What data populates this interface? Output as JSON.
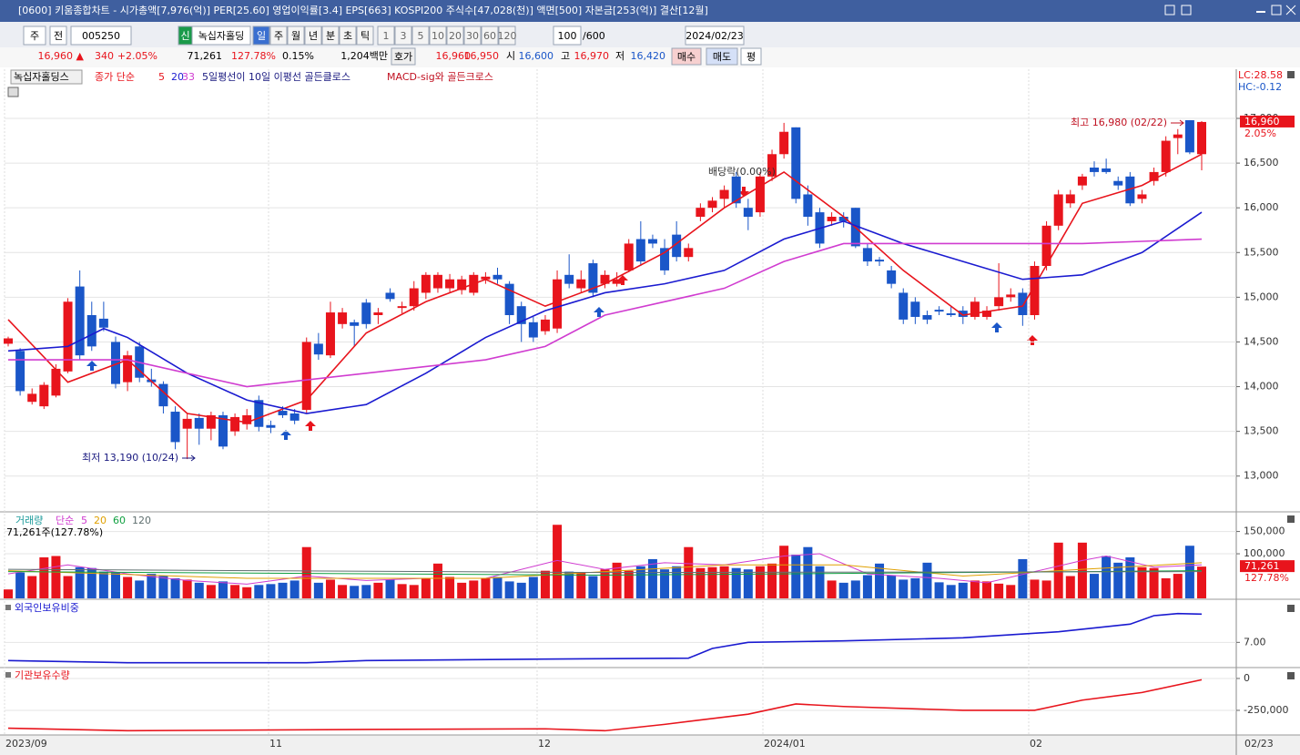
{
  "window": {
    "title": "[0600] 키움종합차트 - 시가총액[7,976(억)] PER[25.60] 영업이익률[3.4] EPS[663] KOSPI200 주식수[47,028(천)] 액면[500] 자본금[253(억)] 결산[12월]"
  },
  "toolbar": {
    "period": "주",
    "range": "전",
    "code": "005250",
    "badge": "신",
    "name": "녹십자홀딩",
    "units": [
      "일",
      "주",
      "월",
      "년",
      "분",
      "초",
      "틱"
    ],
    "intervals": [
      "1",
      "3",
      "5",
      "10",
      "20",
      "30",
      "60",
      "120"
    ],
    "count": "100",
    "max": "/600",
    "date": "2024/02/23"
  },
  "quote": {
    "price": "16,960 ▲",
    "change": "340",
    "rate": "+2.05%",
    "volume": "71,261",
    "volume_rate": "127.78%",
    "turnover": "0.15%",
    "amount": "1,204백만",
    "ask_label": "호가",
    "ask": "16,960",
    "bid": "16,950",
    "open_label": "시",
    "open": "16,600",
    "high_label": "고",
    "high": "16,970",
    "low_label": "저",
    "low": "16,420",
    "buy": "매수",
    "sell": "매도",
    "avg": "평"
  },
  "x_axis": [
    "2023/09",
    "11",
    "12",
    "2024/01",
    "02",
    "02/23"
  ],
  "chart_data": [
    {
      "type": "candlestick",
      "title": "녹십자홀딩스",
      "ma_label": "종가 단순",
      "signals": [
        "5일평선이 10일 이평선 골든클로스",
        "MACD-sig와 골든크로스"
      ],
      "lc": "LC:28.58",
      "hc": "HC:-0.12",
      "annotations": {
        "high": "최고 16,980 (02/22)",
        "low": "최저 13,190 (10/24)",
        "dividend": "배당락(0.00%)"
      },
      "last_price": 16960,
      "last_price_label": "16,960",
      "last_change": "2.05%",
      "up_color": "#e8141c",
      "down_color": "#1a56c8",
      "ylim": [
        12600,
        17550
      ],
      "yticks": [
        {
          "value": 13000,
          "label": "13,000"
        },
        {
          "value": 13500,
          "label": "13,500"
        },
        {
          "value": 14000,
          "label": "14,000"
        },
        {
          "value": 14500,
          "label": "14,500"
        },
        {
          "value": 15000,
          "label": "15,000"
        },
        {
          "value": 15500,
          "label": "15,500"
        },
        {
          "value": 16000,
          "label": "16,000"
        },
        {
          "value": 16500,
          "label": "16,500"
        },
        {
          "value": 17000,
          "label": "17,000"
        }
      ],
      "candles": [
        [
          14480,
          14560,
          14450,
          14540
        ],
        [
          14400,
          14430,
          13900,
          13950
        ],
        [
          13830,
          13980,
          13800,
          13920
        ],
        [
          13780,
          14050,
          13750,
          14020
        ],
        [
          13900,
          14250,
          13880,
          14200
        ],
        [
          14170,
          14990,
          14150,
          14950
        ],
        [
          15120,
          15300,
          14300,
          14350
        ],
        [
          14800,
          14950,
          14400,
          14450
        ],
        [
          14760,
          14950,
          14620,
          14660
        ],
        [
          14500,
          14560,
          13980,
          14030
        ],
        [
          14050,
          14400,
          13950,
          14350
        ],
        [
          14450,
          14500,
          14050,
          14100
        ],
        [
          14080,
          14200,
          14000,
          14050
        ],
        [
          14030,
          14060,
          13700,
          13780
        ],
        [
          13720,
          13780,
          13300,
          13380
        ],
        [
          13530,
          13700,
          13190,
          13640
        ],
        [
          13650,
          13700,
          13350,
          13530
        ],
        [
          13530,
          13720,
          13400,
          13680
        ],
        [
          13680,
          13720,
          13300,
          13330
        ],
        [
          13500,
          13700,
          13450,
          13660
        ],
        [
          13580,
          13750,
          13520,
          13680
        ],
        [
          13850,
          13900,
          13500,
          13550
        ],
        [
          13570,
          13620,
          13480,
          13540
        ],
        [
          13730,
          13780,
          13650,
          13680
        ],
        [
          13700,
          13750,
          13580,
          13620
        ],
        [
          13740,
          14550,
          13700,
          14500
        ],
        [
          14480,
          14600,
          14300,
          14360
        ],
        [
          14350,
          14950,
          14320,
          14830
        ],
        [
          14700,
          14880,
          14650,
          14830
        ],
        [
          14720,
          14750,
          14450,
          14680
        ],
        [
          14940,
          14980,
          14650,
          14700
        ],
        [
          14800,
          14880,
          14700,
          14830
        ],
        [
          15050,
          15100,
          14950,
          14980
        ],
        [
          14880,
          14950,
          14820,
          14900
        ],
        [
          14900,
          15180,
          14850,
          15100
        ],
        [
          15050,
          15280,
          14980,
          15250
        ],
        [
          15100,
          15280,
          15050,
          15250
        ],
        [
          15100,
          15260,
          15050,
          15200
        ],
        [
          15080,
          15240,
          15030,
          15200
        ],
        [
          15050,
          15280,
          15020,
          15250
        ],
        [
          15200,
          15280,
          15150,
          15230
        ],
        [
          15250,
          15330,
          15150,
          15200
        ],
        [
          15150,
          15180,
          14700,
          14800
        ],
        [
          14900,
          14950,
          14500,
          14700
        ],
        [
          14720,
          14780,
          14500,
          14550
        ],
        [
          14620,
          14800,
          14580,
          14750
        ],
        [
          14650,
          15300,
          14600,
          15200
        ],
        [
          15250,
          15480,
          15100,
          15150
        ],
        [
          15100,
          15300,
          15050,
          15200
        ],
        [
          15380,
          15420,
          15000,
          15050
        ],
        [
          15150,
          15300,
          15100,
          15250
        ],
        [
          15150,
          15280,
          15120,
          15200
        ],
        [
          15300,
          15650,
          15280,
          15600
        ],
        [
          15650,
          15850,
          15350,
          15400
        ],
        [
          15650,
          15700,
          15550,
          15600
        ],
        [
          15550,
          15650,
          15250,
          15300
        ],
        [
          15700,
          15850,
          15400,
          15450
        ],
        [
          15450,
          15600,
          15400,
          15550
        ],
        [
          15900,
          16050,
          15850,
          16000
        ],
        [
          16000,
          16120,
          15950,
          16080
        ],
        [
          16100,
          16250,
          16000,
          16200
        ],
        [
          16350,
          16400,
          16000,
          16050
        ],
        [
          16000,
          16100,
          15750,
          15900
        ],
        [
          15950,
          16400,
          15900,
          16350
        ],
        [
          16350,
          16650,
          16300,
          16600
        ],
        [
          16600,
          16950,
          16550,
          16850
        ],
        [
          16900,
          16900,
          16050,
          16100
        ],
        [
          16150,
          16250,
          15800,
          15900
        ],
        [
          15950,
          16000,
          15550,
          15600
        ],
        [
          15850,
          15950,
          15800,
          15900
        ],
        [
          15900,
          15950,
          15780,
          15850
        ],
        [
          16000,
          16000,
          15550,
          15570
        ],
        [
          15550,
          15600,
          15350,
          15400
        ],
        [
          15420,
          15450,
          15350,
          15400
        ],
        [
          15300,
          15350,
          15100,
          15150
        ],
        [
          15050,
          15100,
          14700,
          14750
        ],
        [
          14950,
          15000,
          14700,
          14780
        ],
        [
          14800,
          14850,
          14700,
          14750
        ],
        [
          14860,
          14900,
          14800,
          14840
        ],
        [
          14820,
          14900,
          14780,
          14800
        ],
        [
          14850,
          14900,
          14700,
          14780
        ],
        [
          14780,
          15000,
          14750,
          14950
        ],
        [
          14780,
          14900,
          14750,
          14850
        ],
        [
          14900,
          15380,
          14850,
          15000
        ],
        [
          15000,
          15100,
          14950,
          15030
        ],
        [
          15050,
          15100,
          14680,
          14800
        ],
        [
          14800,
          15400,
          14750,
          15350
        ],
        [
          15350,
          15850,
          15300,
          15800
        ],
        [
          15800,
          16200,
          15750,
          16150
        ],
        [
          16050,
          16200,
          16000,
          16150
        ],
        [
          16250,
          16380,
          16200,
          16350
        ],
        [
          16450,
          16520,
          16350,
          16400
        ],
        [
          16440,
          16550,
          16380,
          16400
        ],
        [
          16300,
          16350,
          16200,
          16250
        ],
        [
          16350,
          16400,
          16020,
          16050
        ],
        [
          16100,
          16200,
          16050,
          16150
        ],
        [
          16300,
          16450,
          16250,
          16400
        ],
        [
          16400,
          16800,
          16350,
          16750
        ],
        [
          16780,
          16880,
          16600,
          16820
        ],
        [
          16980,
          16980,
          16600,
          16620
        ],
        [
          16600,
          16970,
          16420,
          16960
        ]
      ],
      "series": [
        {
          "name": "5",
          "color": "#e8141c",
          "x": [
            0,
            5,
            10,
            15,
            20,
            25,
            30,
            35,
            40,
            45,
            50,
            55,
            60,
            65,
            70,
            75,
            80,
            85,
            90,
            95,
            100
          ],
          "values": [
            14750,
            14050,
            14300,
            13700,
            13600,
            13850,
            14600,
            14950,
            15200,
            14900,
            15150,
            15500,
            16000,
            16400,
            15900,
            15300,
            14800,
            14900,
            16050,
            16250,
            16600
          ]
        },
        {
          "name": "20",
          "color": "#1a1ad0",
          "x": [
            0,
            5,
            8,
            10,
            15,
            20,
            25,
            30,
            35,
            40,
            45,
            50,
            55,
            60,
            65,
            70,
            75,
            80,
            85,
            90,
            95,
            100
          ],
          "values": [
            14400,
            14450,
            14650,
            14550,
            14150,
            13850,
            13700,
            13800,
            14150,
            14550,
            14850,
            15050,
            15150,
            15300,
            15650,
            15850,
            15600,
            15400,
            15200,
            15250,
            15500,
            15950
          ]
        },
        {
          "name": "33",
          "color": "#d03cd0",
          "x": [
            0,
            10,
            20,
            30,
            40,
            45,
            50,
            60,
            65,
            70,
            80,
            90,
            100
          ],
          "values": [
            14300,
            14300,
            14000,
            14150,
            14300,
            14450,
            14800,
            15100,
            15400,
            15600,
            15600,
            15600,
            15650
          ]
        }
      ]
    },
    {
      "type": "bar",
      "title": "거래량",
      "ma_label": "단순",
      "summary": "71,261주(127.78%)",
      "last_value": 71261,
      "last_value_label": "71,261",
      "last_rate": "127.78%",
      "ylim": [
        0,
        190000
      ],
      "yticks": [
        {
          "value": 100000,
          "label": "100,000"
        },
        {
          "value": 150000,
          "label": "150,000"
        }
      ],
      "values": [
        20000,
        58000,
        50000,
        92000,
        95000,
        50000,
        70000,
        68000,
        60000,
        58000,
        48000,
        40000,
        55000,
        50000,
        45000,
        42000,
        35000,
        30000,
        38000,
        30000,
        25000,
        30000,
        32000,
        35000,
        40000,
        115000,
        35000,
        42000,
        30000,
        28000,
        30000,
        35000,
        42000,
        32000,
        30000,
        45000,
        78000,
        48000,
        35000,
        40000,
        45000,
        48000,
        38000,
        35000,
        48000,
        62000,
        165000,
        60000,
        58000,
        50000,
        65000,
        80000,
        62000,
        72000,
        88000,
        65000,
        72000,
        115000,
        68000,
        70000,
        72000,
        68000,
        65000,
        72000,
        78000,
        118000,
        98000,
        115000,
        72000,
        40000,
        35000,
        40000,
        52000,
        78000,
        52000,
        42000,
        45000,
        80000,
        36000,
        30000,
        35000,
        40000,
        38000,
        33000,
        30000,
        88000,
        42000,
        40000,
        125000,
        50000,
        125000,
        55000,
        95000,
        80000,
        92000,
        70000,
        68000,
        45000,
        55000,
        118000,
        71261
      ],
      "series": [
        {
          "name": "5",
          "color": "#d03cd0",
          "x": [
            0,
            5,
            10,
            15,
            20,
            25,
            30,
            35,
            40,
            46,
            50,
            55,
            60,
            65,
            68,
            72,
            78,
            82,
            86,
            90,
            92,
            96,
            100
          ],
          "values": [
            55000,
            75000,
            55000,
            40000,
            32000,
            50000,
            40000,
            45000,
            45000,
            85000,
            65000,
            80000,
            75000,
            95000,
            100000,
            55000,
            45000,
            35000,
            60000,
            85000,
            95000,
            70000,
            75000
          ]
        },
        {
          "name": "20",
          "color": "#e0a000",
          "x": [
            0,
            20,
            40,
            50,
            60,
            70,
            80,
            90,
            100
          ],
          "values": [
            62000,
            45000,
            45000,
            60000,
            75000,
            75000,
            50000,
            65000,
            80000
          ]
        },
        {
          "name": "60",
          "color": "#10a040",
          "x": [
            0,
            50,
            100
          ],
          "values": [
            60000,
            52000,
            62000
          ]
        },
        {
          "name": "120",
          "color": "#607070",
          "x": [
            0,
            50,
            100
          ],
          "values": [
            65000,
            58000,
            60000
          ]
        }
      ]
    },
    {
      "type": "line",
      "title": "외국인보유비중",
      "color": "#1a1ad0",
      "ylim": [
        6.2,
        8.3
      ],
      "yticks": [
        {
          "value": 7,
          "label": "7.00"
        }
      ],
      "x": [
        0,
        10,
        25,
        30,
        45,
        57,
        59,
        62,
        70,
        80,
        88,
        94,
        96,
        98,
        100
      ],
      "values": [
        6.4,
        6.33,
        6.33,
        6.4,
        6.45,
        6.48,
        6.8,
        7.0,
        7.05,
        7.15,
        7.35,
        7.6,
        7.88,
        7.95,
        7.93
      ]
    },
    {
      "type": "line",
      "title": "기관보유수량",
      "color": "#e8141c",
      "ylim": [
        -436000,
        64000
      ],
      "yticks": [
        0,
        {
          "value": -250000,
          "label": "-250,000"
        }
      ],
      "x": [
        0,
        10,
        30,
        45,
        50,
        55,
        62,
        66,
        70,
        80,
        86,
        90,
        95,
        100
      ],
      "values": [
        -390000,
        -410000,
        -400000,
        -395000,
        -410000,
        -360000,
        -280000,
        -200000,
        -220000,
        -250000,
        -250000,
        -170000,
        -110000,
        -10000
      ]
    }
  ]
}
